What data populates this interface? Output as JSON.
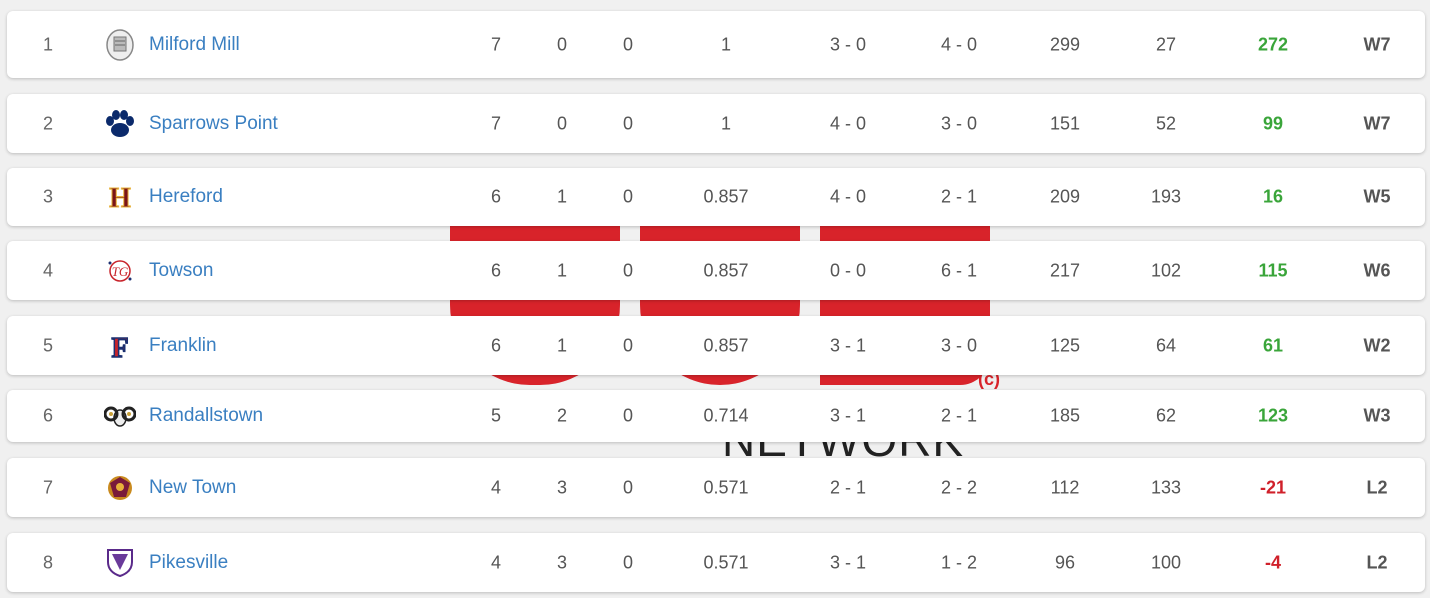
{
  "watermark": {
    "text": "NETWORK",
    "mark": "(c)"
  },
  "rows": [
    {
      "rank": "1",
      "team": "Milford Mill",
      "w": "7",
      "l": "0",
      "t": "0",
      "pct": "1",
      "home": "3 - 0",
      "away": "4 - 0",
      "pf": "299",
      "pa": "27",
      "diff": "272",
      "streak": "W7",
      "logo_icon": "seal-logo-icon"
    },
    {
      "rank": "2",
      "team": "Sparrows Point",
      "w": "7",
      "l": "0",
      "t": "0",
      "pct": "1",
      "home": "4 - 0",
      "away": "3 - 0",
      "pf": "151",
      "pa": "52",
      "diff": "99",
      "streak": "W7",
      "logo_icon": "paw-logo-icon"
    },
    {
      "rank": "3",
      "team": "Hereford",
      "w": "6",
      "l": "1",
      "t": "0",
      "pct": "0.857",
      "home": "4 - 0",
      "away": "2 - 1",
      "pf": "209",
      "pa": "193",
      "diff": "16",
      "streak": "W5",
      "logo_icon": "h-letter-logo-icon"
    },
    {
      "rank": "4",
      "team": "Towson",
      "w": "6",
      "l": "1",
      "t": "0",
      "pct": "0.857",
      "home": "0 - 0",
      "away": "6 - 1",
      "pf": "217",
      "pa": "102",
      "diff": "115",
      "streak": "W6",
      "logo_icon": "tg-monogram-logo-icon"
    },
    {
      "rank": "5",
      "team": "Franklin",
      "w": "6",
      "l": "1",
      "t": "0",
      "pct": "0.857",
      "home": "3 - 1",
      "away": "3 - 0",
      "pf": "125",
      "pa": "64",
      "diff": "61",
      "streak": "W2",
      "logo_icon": "f-letter-logo-icon"
    },
    {
      "rank": "6",
      "team": "Randallstown",
      "w": "5",
      "l": "2",
      "t": "0",
      "pct": "0.714",
      "home": "3 - 1",
      "away": "2 - 1",
      "pf": "185",
      "pa": "62",
      "diff": "123",
      "streak": "W3",
      "logo_icon": "ram-logo-icon"
    },
    {
      "rank": "7",
      "team": "New Town",
      "w": "4",
      "l": "3",
      "t": "0",
      "pct": "0.571",
      "home": "2 - 1",
      "away": "2 - 2",
      "pf": "112",
      "pa": "133",
      "diff": "-21",
      "streak": "L2",
      "logo_icon": "titan-logo-icon"
    },
    {
      "rank": "8",
      "team": "Pikesville",
      "w": "4",
      "l": "3",
      "t": "0",
      "pct": "0.571",
      "home": "3 - 1",
      "away": "1 - 2",
      "pf": "96",
      "pa": "100",
      "diff": "-4",
      "streak": "L2",
      "logo_icon": "shield-logo-icon"
    }
  ],
  "colors": {
    "link": "#3a7fc1",
    "positive": "#3aa53a",
    "negative": "#d0202a",
    "watermark": "#d8232a"
  }
}
